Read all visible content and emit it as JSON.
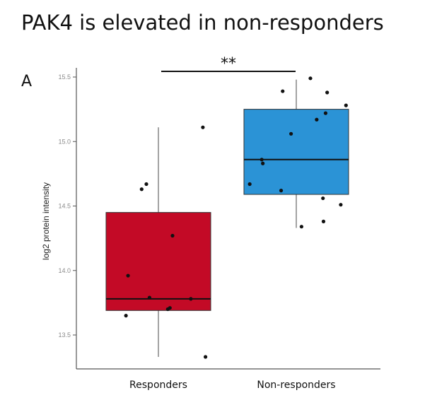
{
  "chart_data": {
    "type": "box",
    "title": "PAK4 is elevated in non-responders",
    "panel_label": "A",
    "ylabel": "log2 protein intensity",
    "xlabel": "",
    "ylim": [
      13.25,
      15.6
    ],
    "yticks": [
      13.5,
      14.0,
      14.5,
      15.0,
      15.5
    ],
    "ytick_labels": [
      "13.5",
      "14.0",
      "14.5",
      "15.0",
      "15.5"
    ],
    "categories": [
      "Responders",
      "Non-responders"
    ],
    "significance": "**",
    "colors": {
      "Responders": "#c30a26",
      "Non-responders": "#2b93d6"
    },
    "boxes": [
      {
        "category": "Responders",
        "whisker_low": 13.33,
        "q1": 13.69,
        "median": 13.78,
        "q3": 14.45,
        "whisker_high": 15.11
      },
      {
        "category": "Non-responders",
        "whisker_low": 14.33,
        "q1": 14.59,
        "median": 14.86,
        "q3": 15.25,
        "whisker_high": 15.48
      }
    ],
    "points": [
      {
        "category": "Responders",
        "jitter": -0.62,
        "value": 13.65
      },
      {
        "category": "Responders",
        "jitter": -0.58,
        "value": 13.96
      },
      {
        "category": "Responders",
        "jitter": -0.32,
        "value": 14.63
      },
      {
        "category": "Responders",
        "jitter": -0.23,
        "value": 14.67
      },
      {
        "category": "Responders",
        "jitter": -0.17,
        "value": 13.79
      },
      {
        "category": "Responders",
        "jitter": 0.18,
        "value": 13.7
      },
      {
        "category": "Responders",
        "jitter": 0.22,
        "value": 13.71
      },
      {
        "category": "Responders",
        "jitter": 0.27,
        "value": 14.27
      },
      {
        "category": "Responders",
        "jitter": 0.62,
        "value": 13.78
      },
      {
        "category": "Responders",
        "jitter": 0.85,
        "value": 15.11
      },
      {
        "category": "Responders",
        "jitter": 0.9,
        "value": 13.33
      },
      {
        "category": "Non-responders",
        "jitter": -0.89,
        "value": 14.67
      },
      {
        "category": "Non-responders",
        "jitter": -0.66,
        "value": 14.86
      },
      {
        "category": "Non-responders",
        "jitter": -0.64,
        "value": 14.83
      },
      {
        "category": "Non-responders",
        "jitter": -0.29,
        "value": 14.62
      },
      {
        "category": "Non-responders",
        "jitter": -0.26,
        "value": 15.39
      },
      {
        "category": "Non-responders",
        "jitter": -0.1,
        "value": 15.06
      },
      {
        "category": "Non-responders",
        "jitter": 0.1,
        "value": 14.34
      },
      {
        "category": "Non-responders",
        "jitter": 0.27,
        "value": 15.49
      },
      {
        "category": "Non-responders",
        "jitter": 0.39,
        "value": 15.17
      },
      {
        "category": "Non-responders",
        "jitter": 0.51,
        "value": 14.56
      },
      {
        "category": "Non-responders",
        "jitter": 0.52,
        "value": 14.38
      },
      {
        "category": "Non-responders",
        "jitter": 0.56,
        "value": 15.22
      },
      {
        "category": "Non-responders",
        "jitter": 0.59,
        "value": 15.38
      },
      {
        "category": "Non-responders",
        "jitter": 0.85,
        "value": 14.51
      },
      {
        "category": "Non-responders",
        "jitter": 0.95,
        "value": 15.28
      }
    ]
  }
}
